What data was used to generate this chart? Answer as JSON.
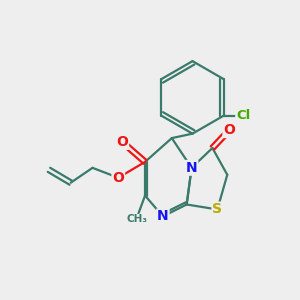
{
  "bg_color": "#eeeeee",
  "bond_color": "#3a7a6a",
  "bond_lw": 1.6,
  "atom_colors": {
    "N": "#1515ee",
    "O": "#ee1515",
    "S": "#bbaa00",
    "Cl": "#44aa00",
    "C": "#3a7a6a"
  },
  "xlim": [
    0,
    10
  ],
  "ylim": [
    0,
    10
  ]
}
